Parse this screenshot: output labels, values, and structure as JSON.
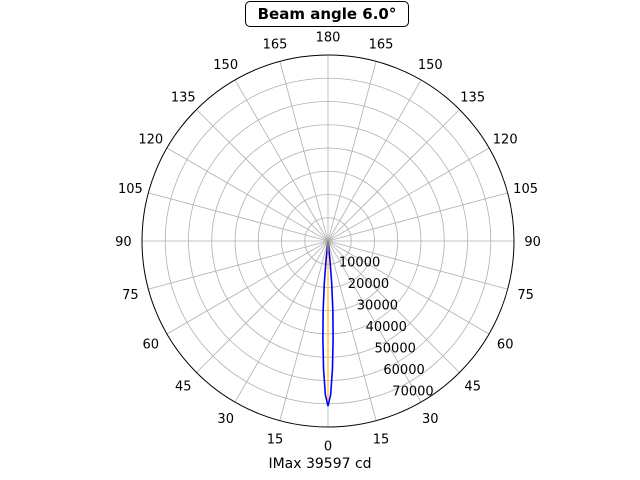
{
  "title": "Beam angle 6.0°",
  "footer": "IMax 39597 cd",
  "chart_data": {
    "type": "polar-line",
    "theta_zero": "bottom",
    "angle_ticks": [
      0,
      15,
      30,
      45,
      60,
      75,
      90,
      105,
      120,
      135,
      150,
      165,
      180,
      165,
      150,
      135,
      120,
      105,
      90,
      75,
      60,
      45,
      30,
      15
    ],
    "radial_ticks": [
      10000,
      20000,
      30000,
      40000,
      50000,
      60000,
      70000
    ],
    "rmax": 80000,
    "grid": true,
    "series": [
      {
        "color": "#0000ff",
        "angle_deg": [
          -8,
          -6,
          -5,
          -4,
          -3,
          -2,
          -1,
          0,
          1,
          2,
          3,
          4,
          5,
          6,
          8
        ],
        "r": [
          0,
          8000,
          18000,
          30000,
          42000,
          55000,
          66000,
          71000,
          66000,
          55000,
          42000,
          30000,
          18000,
          8000,
          0
        ]
      },
      {
        "color": "#ffbf00",
        "angle_deg": [
          -0.3,
          0,
          0.3
        ],
        "r": [
          0,
          69000,
          0
        ]
      }
    ]
  }
}
